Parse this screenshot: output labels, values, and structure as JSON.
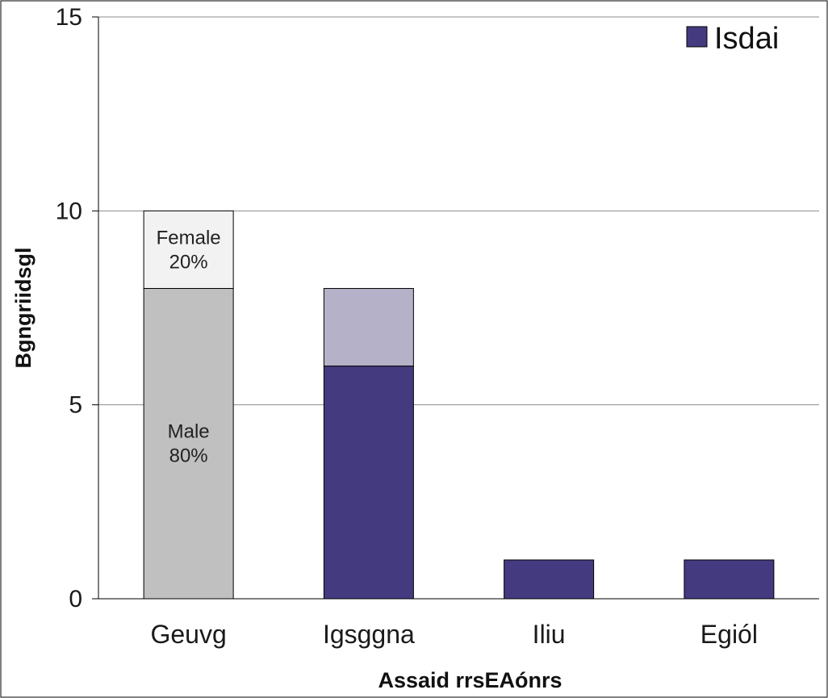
{
  "chart_data": {
    "type": "bar",
    "stacked": true,
    "categories": [
      "Geuvg",
      "Igsggna",
      "Iliu",
      "Egiól"
    ],
    "xlabel": "Assaid rrsEAónrs",
    "ylabel": "Bgngriidsgl",
    "ylim": [
      0,
      15
    ],
    "yticks": [
      0,
      5,
      10,
      15
    ],
    "grid": true,
    "legend": {
      "position": "top-right",
      "entries": [
        {
          "label": "Isdai",
          "color": "#443a80"
        }
      ]
    },
    "bars": [
      {
        "category": "Geuvg",
        "segments": [
          {
            "value": 8,
            "color": "#c0c0c0",
            "label_lines": [
              "Male",
              "80%"
            ]
          },
          {
            "value": 2,
            "color": "#f2f2f2",
            "label_lines": [
              "Female",
              "20%"
            ]
          }
        ]
      },
      {
        "category": "Igsggna",
        "segments": [
          {
            "value": 6,
            "color": "#443a80"
          },
          {
            "value": 2,
            "color": "#b4b1c8"
          }
        ]
      },
      {
        "category": "Iliu",
        "segments": [
          {
            "value": 1,
            "color": "#443a80"
          }
        ]
      },
      {
        "category": "Egiól",
        "segments": [
          {
            "value": 1,
            "color": "#443a80"
          }
        ]
      }
    ]
  }
}
